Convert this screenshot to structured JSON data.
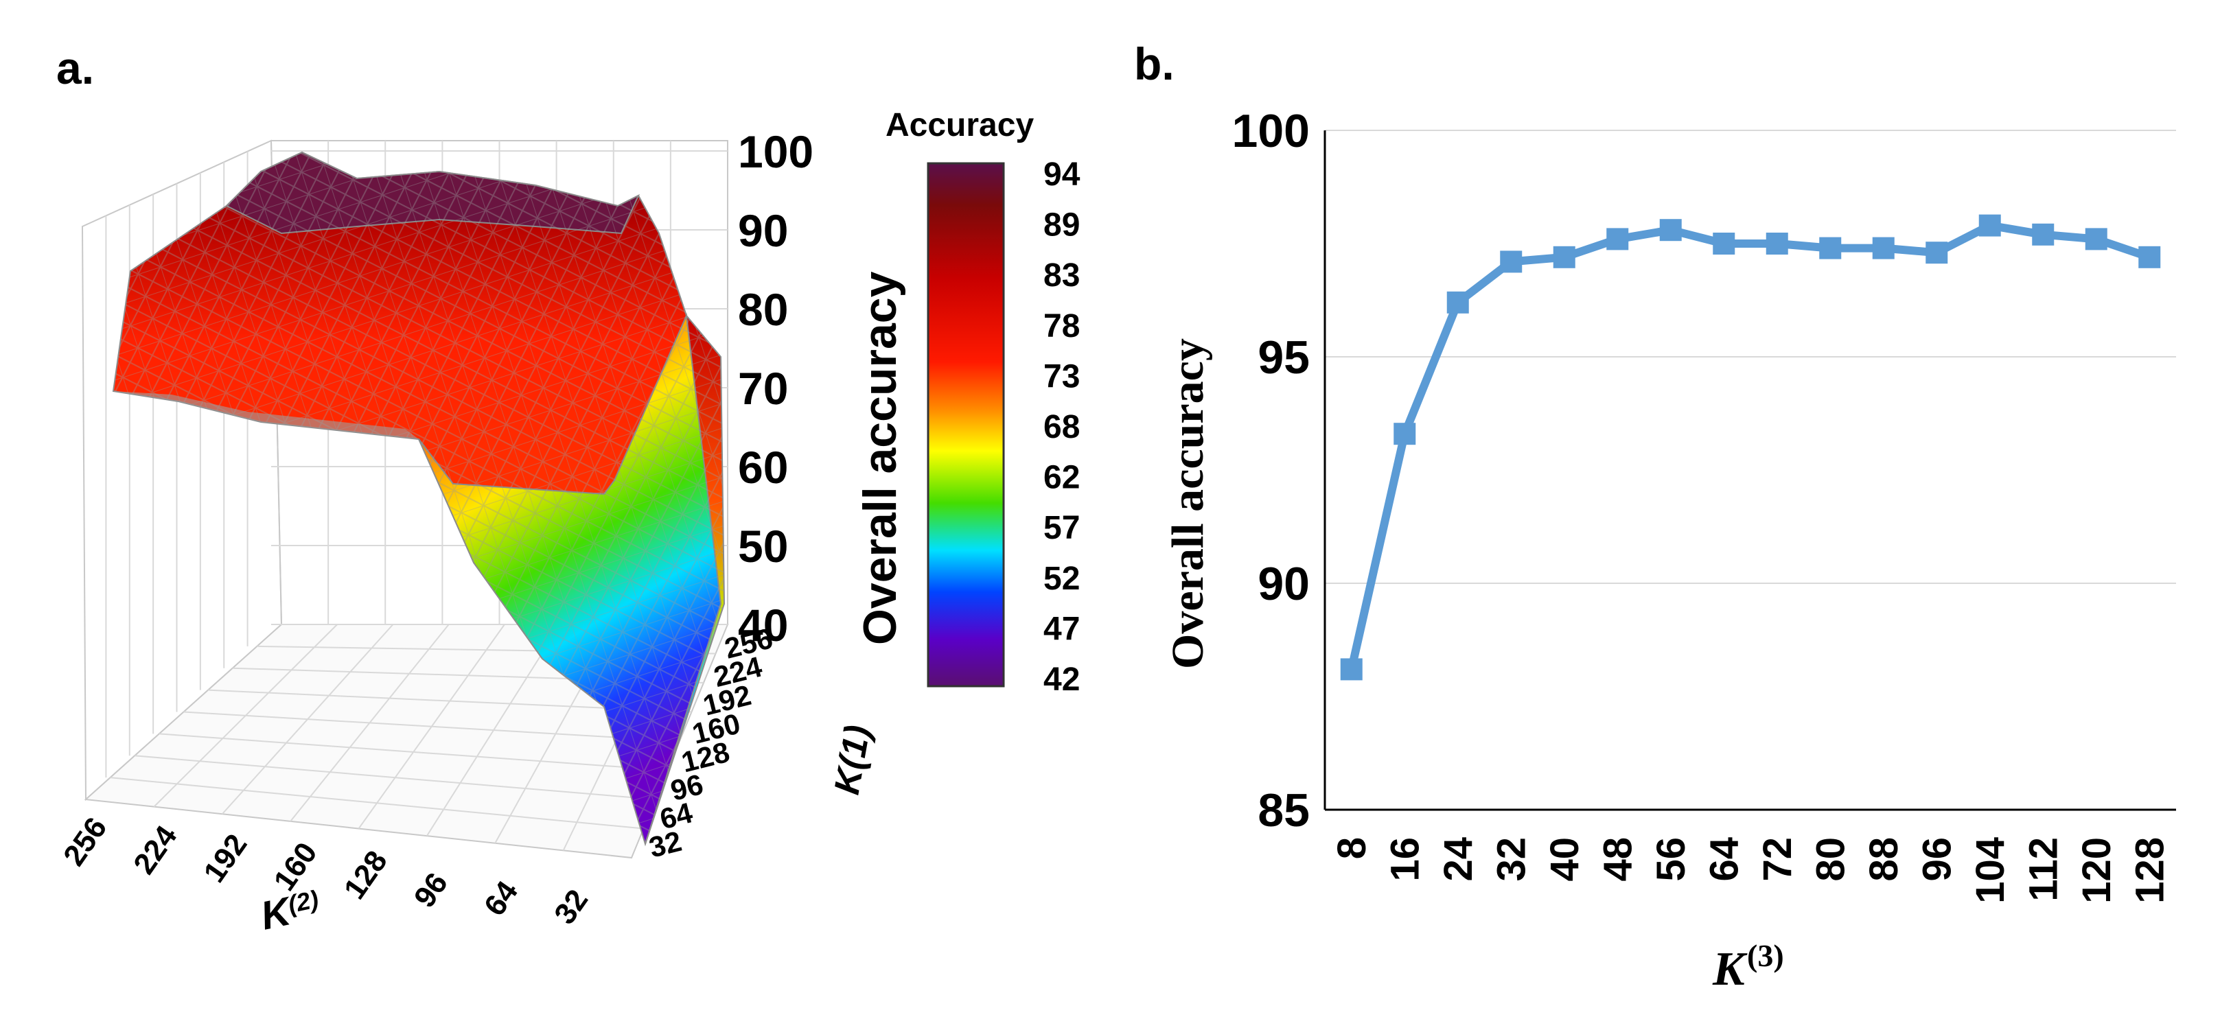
{
  "panels": {
    "a": "a.",
    "b": "b."
  },
  "colors": {
    "line": "#5B9BD5",
    "grid": "#d9d9d9",
    "axis": "#000000",
    "mesh": "#9a9a9a"
  },
  "chart_data": [
    {
      "type": "surface",
      "panel": "a.",
      "zlabel": "Overall accuracy",
      "xlabel": "K",
      "xlabel_sup": "(2)",
      "ylabel": "K(1)",
      "x_ticks": [
        "256",
        "224",
        "192",
        "160",
        "128",
        "96",
        "64",
        "32"
      ],
      "y_ticks": [
        "32",
        "64",
        "96",
        "128",
        "160",
        "192",
        "224",
        "256"
      ],
      "z_ticks": [
        "100",
        "90",
        "80",
        "70",
        "60",
        "50",
        "40"
      ],
      "zlim": [
        40,
        100
      ],
      "colorbar_title": "Accuracy",
      "colorbar_ticks": [
        "94",
        "89",
        "83",
        "78",
        "73",
        "68",
        "62",
        "57",
        "52",
        "47",
        "42"
      ],
      "colorbar_range": [
        42,
        94
      ],
      "description_values": {
        "plateau_max": 94,
        "min_at_small_K1_small_K2": 42
      }
    },
    {
      "type": "line",
      "panel": "b.",
      "title": "",
      "xlabel": "K",
      "xlabel_sup": "(3)",
      "ylabel": "Overall accuracy",
      "x": [
        "8",
        "16",
        "24",
        "32",
        "40",
        "48",
        "56",
        "64",
        "72",
        "80",
        "88",
        "96",
        "104",
        "112",
        "120",
        "128"
      ],
      "y": [
        88.1,
        93.3,
        96.2,
        97.1,
        97.2,
        97.6,
        97.8,
        97.5,
        97.5,
        97.4,
        97.4,
        97.3,
        97.9,
        97.7,
        97.6,
        97.2
      ],
      "ylim": [
        85,
        100
      ],
      "y_ticks": [
        "100",
        "95",
        "90",
        "85"
      ],
      "grid": true,
      "marker": "square"
    }
  ]
}
